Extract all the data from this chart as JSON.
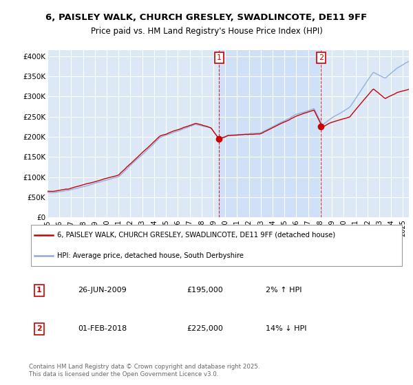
{
  "title1": "6, PAISLEY WALK, CHURCH GRESLEY, SWADLINCOTE, DE11 9FF",
  "title2": "Price paid vs. HM Land Registry's House Price Index (HPI)",
  "ylabel_ticks": [
    "£0",
    "£50K",
    "£100K",
    "£150K",
    "£200K",
    "£250K",
    "£300K",
    "£350K",
    "£400K"
  ],
  "ytick_values": [
    0,
    50000,
    100000,
    150000,
    200000,
    250000,
    300000,
    350000,
    400000
  ],
  "ylim": [
    0,
    415000
  ],
  "xlim_start": 1995.0,
  "xlim_end": 2025.5,
  "plot_bg_color": "#dce8f5",
  "grid_color": "#ffffff",
  "hpi_color": "#88aadd",
  "price_color": "#cc0000",
  "sale1_x": 2009.49,
  "sale1_y": 195000,
  "sale2_x": 2018.08,
  "sale2_y": 225000,
  "legend_label1": "6, PAISLEY WALK, CHURCH GRESLEY, SWADLINCOTE, DE11 9FF (detached house)",
  "legend_label2": "HPI: Average price, detached house, South Derbyshire",
  "table_row1": [
    "1",
    "26-JUN-2009",
    "£195,000",
    "2% ↑ HPI"
  ],
  "table_row2": [
    "2",
    "01-FEB-2018",
    "£225,000",
    "14% ↓ HPI"
  ],
  "footer": "Contains HM Land Registry data © Crown copyright and database right 2025.\nThis data is licensed under the Open Government Licence v3.0."
}
